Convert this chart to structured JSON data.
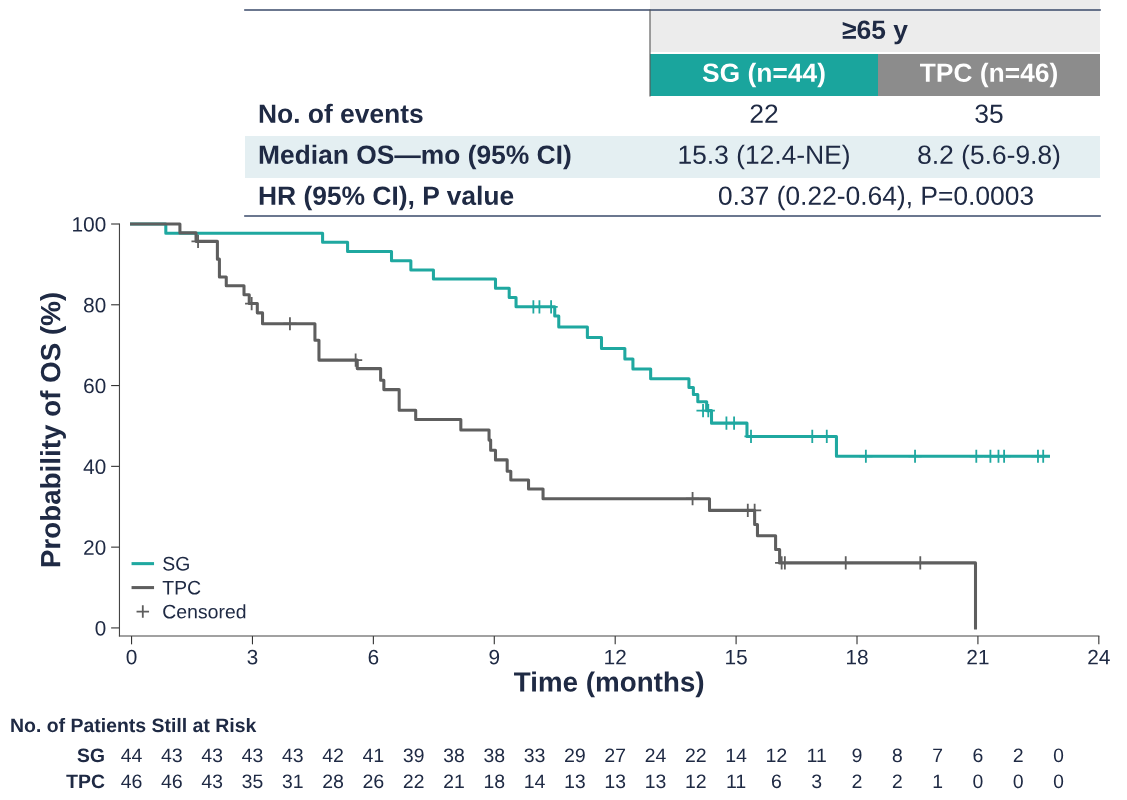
{
  "chart_data": {
    "type": "step",
    "xlabel": "Time (months)",
    "ylabel": "Probability of OS (%)",
    "xlim": [
      -0.3,
      24
    ],
    "ylim": [
      -2,
      100
    ],
    "xticks": [
      0,
      3,
      6,
      9,
      12,
      15,
      18,
      21,
      24
    ],
    "yticks": [
      0,
      20,
      40,
      60,
      80,
      100
    ],
    "grid": false,
    "legend": "bottom left",
    "line_style": "solid",
    "series": [
      {
        "name": "SG",
        "color": "#1fa8a0",
        "x": [
          0,
          0.85,
          4.74,
          5.36,
          6.45,
          6.93,
          7.49,
          9.03,
          9.37,
          9.54,
          10.5,
          10.6,
          11.31,
          11.66,
          12.24,
          12.44,
          12.88,
          13.83,
          13.94,
          14.05,
          14.27,
          14.39,
          15.27,
          17.49,
          22.75
        ],
        "values": [
          100,
          97.7,
          95.5,
          93.2,
          90.9,
          88.6,
          86.4,
          84.1,
          81.8,
          79.5,
          77.2,
          74.5,
          71.9,
          69.2,
          66.6,
          64.1,
          61.7,
          59.5,
          57.8,
          56.0,
          53.8,
          50.7,
          47.4,
          42.5,
          42.5
        ]
      },
      {
        "name": "TPC",
        "color": "#5e5e5e",
        "x": [
          0,
          1.2,
          1.6,
          2.13,
          2.18,
          2.35,
          2.79,
          2.92,
          3.12,
          3.25,
          4.55,
          4.65,
          5.6,
          6.18,
          6.26,
          6.64,
          7.05,
          8.17,
          8.87,
          8.91,
          9.03,
          9.32,
          9.41,
          9.85,
          10.21,
          14.34,
          15.46,
          15.53,
          15.98,
          16.08,
          20.94
        ],
        "values": [
          100,
          97.8,
          95.7,
          91.3,
          86.9,
          84.7,
          82.5,
          80.3,
          78.0,
          75.3,
          71.2,
          66.3,
          64.2,
          61.3,
          59.0,
          53.9,
          51.6,
          49.0,
          46.5,
          44.0,
          41.6,
          38.8,
          36.6,
          34.4,
          32.0,
          29.1,
          25.6,
          22.8,
          19.4,
          16.1,
          0
        ]
      },
      {
        "name": "Censored",
        "type": "scatter",
        "marker": "cross",
        "color": "#5e5e5e",
        "x": [
          9.97,
          10.12,
          10.41,
          14.18,
          14.31,
          14.76,
          14.95,
          15.37,
          16.89,
          17.25,
          18.22,
          19.44,
          20.96,
          21.31,
          21.51,
          21.65,
          22.49,
          22.62,
          1.65,
          2.98,
          3.93,
          5.56,
          13.92,
          15.29,
          15.46,
          16.13,
          16.21,
          17.72,
          19.57
        ],
        "values": [
          79.5,
          79.5,
          79.5,
          53.8,
          53.8,
          50.7,
          50.7,
          47.4,
          47.4,
          47.4,
          42.5,
          42.5,
          42.5,
          42.5,
          42.5,
          42.5,
          42.5,
          42.5,
          95.7,
          80.3,
          75.3,
          66.3,
          32.0,
          29.1,
          29.1,
          16.1,
          16.1,
          16.1,
          16.1
        ],
        "colors": [
          "#1fa8a0",
          "#1fa8a0",
          "#1fa8a0",
          "#1fa8a0",
          "#1fa8a0",
          "#1fa8a0",
          "#1fa8a0",
          "#1fa8a0",
          "#1fa8a0",
          "#1fa8a0",
          "#1fa8a0",
          "#1fa8a0",
          "#1fa8a0",
          "#1fa8a0",
          "#1fa8a0",
          "#1fa8a0",
          "#1fa8a0",
          "#1fa8a0",
          "#5e5e5e",
          "#5e5e5e",
          "#5e5e5e",
          "#5e5e5e",
          "#5e5e5e",
          "#5e5e5e",
          "#5e5e5e",
          "#5e5e5e",
          "#5e5e5e",
          "#5e5e5e",
          "#5e5e5e"
        ]
      }
    ],
    "annotations": [
      "≥65 y",
      "SG (n=44)",
      "TPC (n=46)",
      "No. of events",
      "22",
      "35",
      "Median OS—mo (95% CI)",
      "15.3 (12.4-NE)",
      "8.2 (5.6-9.8)",
      "HR (95% CI), P value",
      "0.37 (0.22-0.64), P=0.0003",
      "No. of Patients Still at Risk",
      "SG",
      "44 43 43 43 43 42 41 39 38 38 33 29 27 24 22 14 12 11 9 8 7 6 2 0",
      "TPC",
      "46 46 43 35 31 28 26 22 21 18 14 13 13 13 12 11 6 3 2 2 1 0 0 0"
    ]
  }
}
